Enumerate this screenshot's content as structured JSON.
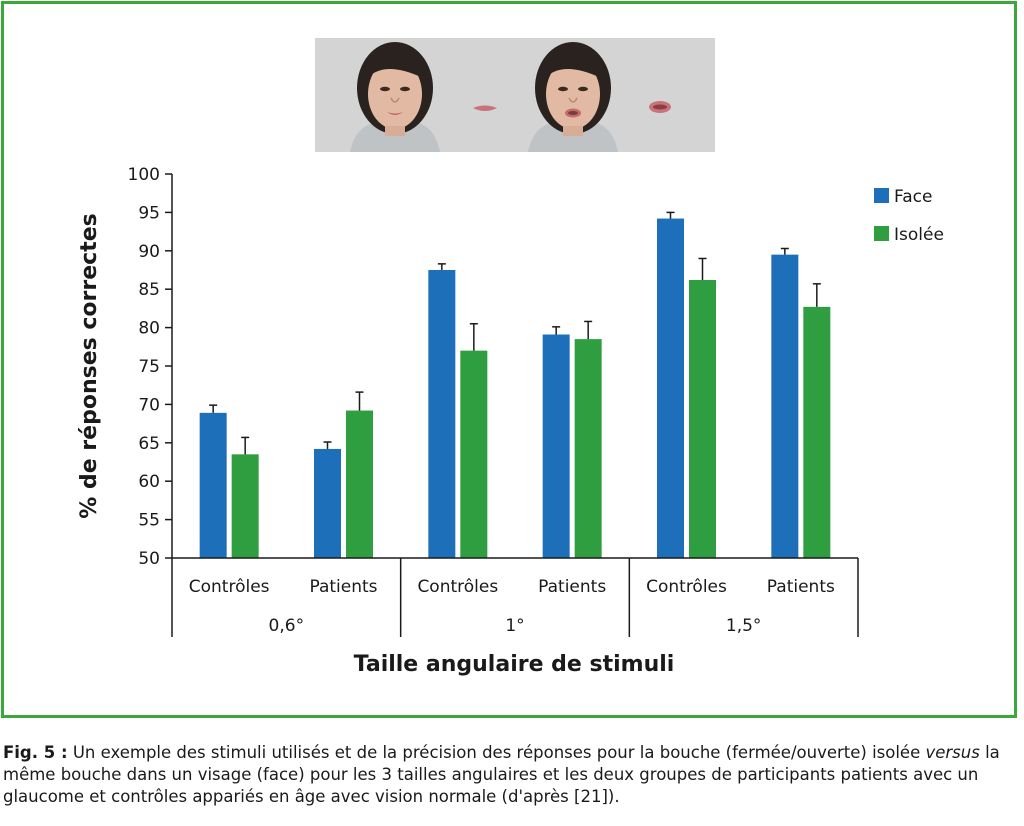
{
  "chart_data": {
    "type": "bar",
    "title": "",
    "ylabel": "% de réponses correctes",
    "xlabel": "Taille angulaire de stimuli",
    "ylim": [
      50,
      100
    ],
    "yticks": [
      50,
      55,
      60,
      65,
      70,
      75,
      80,
      85,
      90,
      95,
      100
    ],
    "categories": [
      "Contrôles",
      "Patients",
      "Contrôles",
      "Patients",
      "Contrôles",
      "Patients"
    ],
    "groups": [
      {
        "label": "0,6°",
        "categories": [
          "Contrôles",
          "Patients"
        ]
      },
      {
        "label": "1°",
        "categories": [
          "Contrôles",
          "Patients"
        ]
      },
      {
        "label": "1,5°",
        "categories": [
          "Contrôles",
          "Patients"
        ]
      }
    ],
    "series": [
      {
        "name": "Face",
        "color": "#1e6fba",
        "values": [
          68.9,
          64.2,
          87.5,
          79.1,
          94.2,
          89.5
        ],
        "errors": [
          1.0,
          0.9,
          0.8,
          1.0,
          0.8,
          0.8
        ]
      },
      {
        "name": "Isolée",
        "color": "#2e9e41",
        "values": [
          63.5,
          69.2,
          77.0,
          78.5,
          86.2,
          82.7
        ],
        "errors": [
          2.2,
          2.4,
          3.5,
          2.3,
          2.8,
          3.0
        ]
      }
    ],
    "legend_position": "top-right",
    "grid": false
  },
  "caption": {
    "label": "Fig. 5 :",
    "text_1": " Un exemple des stimuli utilisés et de la précision des réponses pour la bouche (fermée/ouverte) isolée ",
    "italic": "versus",
    "text_2": " la même bouche dans un visage (face) pour les 3 tailles angulaires et les deux groupes de participants patients avec un glaucome et contrôles appariés en âge avec vision normale (d'après [21])."
  },
  "colors": {
    "frame": "#3ca83c",
    "face": "#1e6fba",
    "isolee": "#2e9e41"
  }
}
